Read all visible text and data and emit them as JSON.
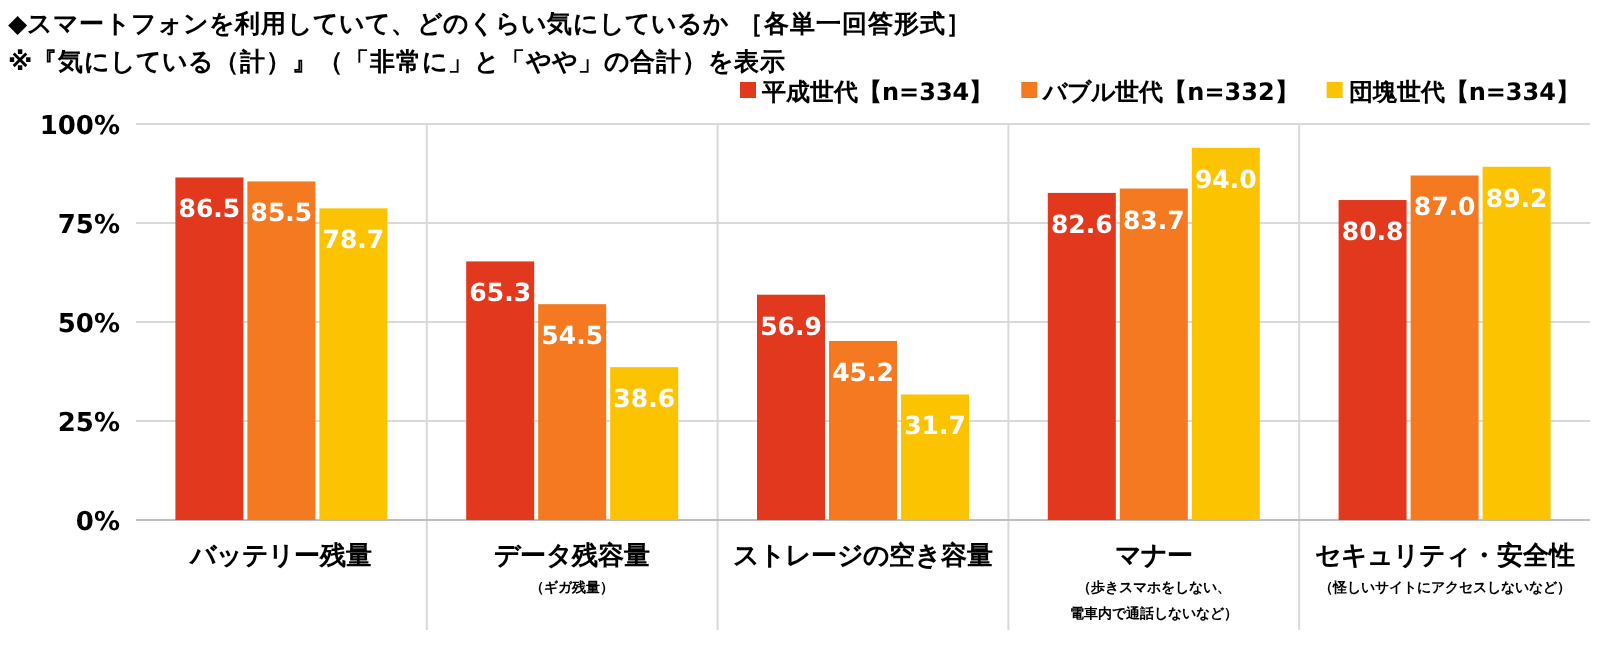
{
  "chart_data": {
    "type": "bar",
    "title": "◆スマートフォンを利用していて、どのくらい気にしているか ［各単一回答形式］",
    "subtitle": "※『気にしている（計）』（「非常に」と「やや」の合計）を表示",
    "categories": [
      "バッテリー残量",
      "データ残容量（ギガ残量）",
      "ストレージの空き容量",
      "マナー（歩きスマホをしない、電車内で通話しないなど）",
      "セキュリティ・安全性（怪しいサイトにアクセスしないなど）"
    ],
    "series": [
      {
        "name": "平成世代【n=334】",
        "color": "#e2381d",
        "values": [
          86.5,
          65.3,
          56.9,
          82.6,
          80.8
        ],
        "value_labels": [
          "86.5",
          "65.3",
          "56.9",
          "82.6",
          "80.8"
        ]
      },
      {
        "name": "バブル世代【n=332】",
        "color": "#f47920",
        "values": [
          85.5,
          54.5,
          45.2,
          83.7,
          87.0
        ],
        "value_labels": [
          "85.5",
          "54.5",
          "45.2",
          "83.7",
          "87.0"
        ]
      },
      {
        "name": "団塊世代【n=334】",
        "color": "#fcc400",
        "values": [
          78.7,
          38.6,
          31.7,
          94.0,
          89.2
        ],
        "value_labels": [
          "78.7",
          "38.6",
          "31.7",
          "94.0",
          "89.2"
        ]
      }
    ],
    "ylim": [
      0,
      100
    ],
    "yticks": [
      {
        "value": 0,
        "label": "0%"
      },
      {
        "value": 25,
        "label": "25%"
      },
      {
        "value": 50,
        "label": "50%"
      },
      {
        "value": 75,
        "label": "75%"
      },
      {
        "value": 100,
        "label": "100%"
      }
    ],
    "grid": "y",
    "legend": "top right"
  }
}
